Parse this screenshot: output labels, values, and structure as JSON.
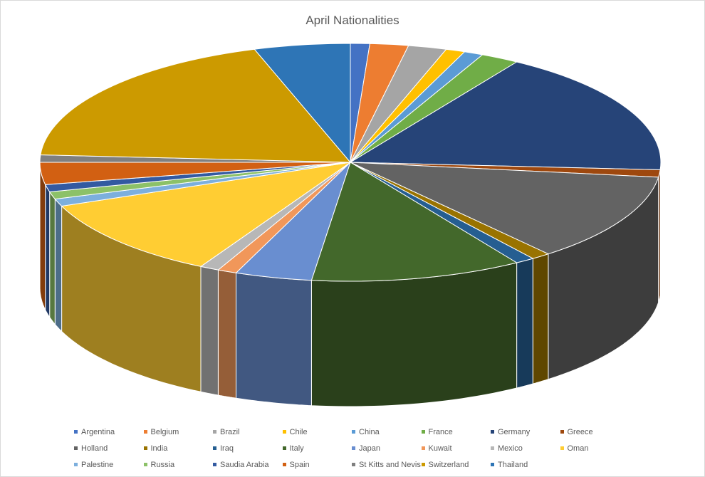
{
  "chart_data": {
    "type": "pie",
    "title": "April Nationalities",
    "legend_position": "bottom",
    "categories": [
      "Argentina",
      "Belgium",
      "Brazil",
      "Chile",
      "China",
      "France",
      "Germany",
      "Greece",
      "Holland",
      "India",
      "Iraq",
      "Italy",
      "Japan",
      "Kuwait",
      "Mexico",
      "Oman",
      "Palestine",
      "Russia",
      "Saudia Arabia",
      "Spain",
      "St Kitts and Nevis",
      "Switzerland",
      "Thailand"
    ],
    "values": [
      1,
      2,
      2,
      1,
      1,
      2,
      17,
      1,
      12,
      1,
      1,
      11,
      4,
      1,
      1,
      11,
      1,
      1,
      1,
      3,
      1,
      19,
      5
    ],
    "colors": [
      "#4472C4",
      "#ED7D31",
      "#A5A5A5",
      "#FFC000",
      "#5B9BD5",
      "#70AD47",
      "#264478",
      "#9E480E",
      "#636363",
      "#997300",
      "#255E91",
      "#43682B",
      "#698ED0",
      "#F1975A",
      "#B7B7B7",
      "#FFCD33",
      "#7CAFDD",
      "#8CC168",
      "#335AA1",
      "#D26012",
      "#7F7F7F",
      "#CC9A00",
      "#2E75B6"
    ]
  }
}
